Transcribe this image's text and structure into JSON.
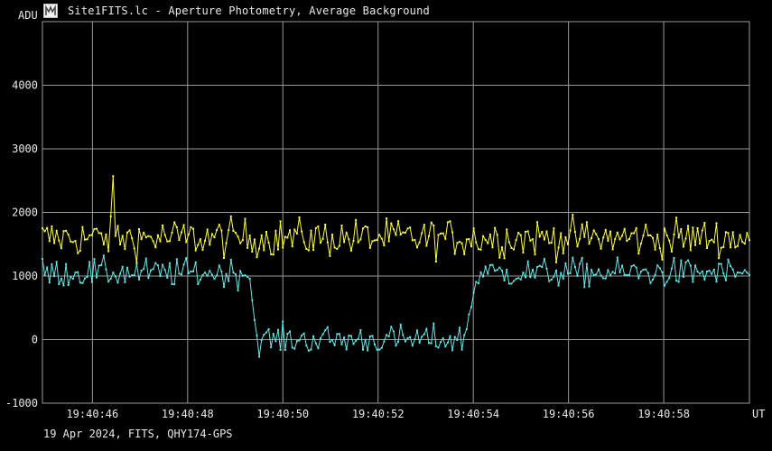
{
  "title": "Site1FITS.lc - Aperture Photometry, Average Background",
  "footer": "19 Apr 2024, FITS, QHY174-GPS",
  "icons": {
    "app": "lightcurve-app-icon"
  },
  "colors": {
    "background": "#000000",
    "grid": "#9a9a9a",
    "series_target": "#ffff44",
    "series_background": "#66e6e6",
    "text": "#e8e8e8"
  },
  "chart_data": {
    "type": "line",
    "title": "Site1FITS.lc - Aperture Photometry, Average Background",
    "ylabel": "ADU",
    "xlabel": "UT",
    "ylim": [
      -1000,
      5000
    ],
    "yticks": [
      -1000,
      0,
      1000,
      2000,
      3000,
      4000
    ],
    "ytick_labels": [
      "-1000",
      "0",
      "1000",
      "2000",
      "3000",
      "4000"
    ],
    "xlim_seconds": [
      44.95,
      59.8
    ],
    "xticks_seconds": [
      46,
      48,
      50,
      52,
      54,
      56,
      58
    ],
    "xtick_labels": [
      "19:40:46",
      "19:40:48",
      "19:40:50",
      "19:40:52",
      "19:40:54",
      "19:40:56",
      "19:40:58"
    ],
    "grid": true,
    "legend": "none",
    "series": [
      {
        "color": "#ffff44",
        "summary": {
          "baseline_adu": 1600,
          "noise_adu": 200,
          "peak_adu": 2570,
          "peak_time": "19:40:46.45"
        }
      },
      {
        "color": "#66e6e6",
        "summary": {
          "baseline_adu": 1050,
          "noise_adu": 150,
          "event": "occultation",
          "drop_start": "19:40:49.3",
          "drop_end": "19:40:49.45",
          "recovery_start": "19:40:53.8",
          "recovery_end": "19:40:54.1",
          "depth_level_adu": 0
        }
      }
    ]
  }
}
